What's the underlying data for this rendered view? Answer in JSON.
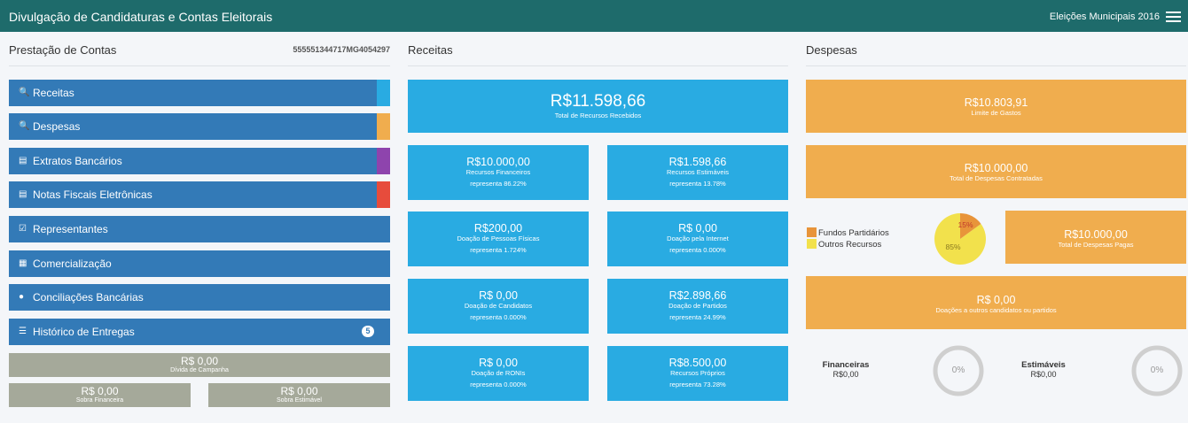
{
  "header": {
    "title": "Divulgação de Candidaturas e Contas Eleitorais",
    "election": "Eleições Municipais 2016"
  },
  "colors": {
    "header": "#1e6b6b",
    "menu": "#337ab7",
    "receitas_tile": "#29abe2",
    "despesas_tile": "#f0ad4e",
    "grey_box": "#a5a99a"
  },
  "prestacao": {
    "title": "Prestação de Contas",
    "id": "555551344717MG4054297",
    "menu": [
      {
        "icon": "search-icon",
        "label": "Receitas",
        "color": "#29abe2"
      },
      {
        "icon": "search-icon",
        "label": "Despesas",
        "color": "#f0ad4e"
      },
      {
        "icon": "document-icon",
        "label": "Extratos Bancários",
        "color": "#8e44ad"
      },
      {
        "icon": "document-icon",
        "label": "Notas Fiscais Eletrônicas",
        "color": "#e74c3c"
      },
      {
        "icon": "check-square-icon",
        "label": "Representantes",
        "color": ""
      },
      {
        "icon": "calendar-check-icon",
        "label": "Comercialização",
        "color": ""
      },
      {
        "icon": "comments-icon",
        "label": "Conciliações Bancárias",
        "color": ""
      },
      {
        "icon": "list-icon",
        "label": "Histórico de Entregas",
        "color": "",
        "badge": "5"
      }
    ],
    "divida": {
      "value": "R$ 0,00",
      "label": "Dívida de Campanha"
    },
    "sobra_financeira": {
      "value": "R$ 0,00",
      "label": "Sobra Financeira"
    },
    "sobra_estimavel": {
      "value": "R$ 0,00",
      "label": "Sobra Estimável"
    }
  },
  "receitas": {
    "title": "Receitas",
    "total": {
      "value": "R$11.598,66",
      "label": "Total de Recursos Recebidos"
    },
    "tiles": [
      {
        "value": "R$10.000,00",
        "label": "Recursos Financeiros",
        "rep": "representa 86.22%"
      },
      {
        "value": "R$1.598,66",
        "label": "Recursos Estimáveis",
        "rep": "representa 13.78%"
      },
      {
        "value": "R$200,00",
        "label": "Doação de Pessoas Físicas",
        "rep": "representa 1.724%"
      },
      {
        "value": "R$ 0,00",
        "label": "Doação pela Internet",
        "rep": "representa 0.000%"
      },
      {
        "value": "R$ 0,00",
        "label": "Doação de Candidatos",
        "rep": "representa 0.000%"
      },
      {
        "value": "R$2.898,66",
        "label": "Doação de Partidos",
        "rep": "representa 24.99%"
      },
      {
        "value": "R$ 0,00",
        "label": "Doação de RONIs",
        "rep": "representa 0.000%"
      },
      {
        "value": "R$8.500,00",
        "label": "Recursos Próprios",
        "rep": "representa 73.28%"
      }
    ]
  },
  "despesas": {
    "title": "Despesas",
    "limite": {
      "value": "R$10.803,91",
      "label": "Limite de Gastos"
    },
    "contratadas": {
      "value": "R$10.000,00",
      "label": "Total de Despesas Contratadas"
    },
    "pagas": {
      "value": "R$10.000,00",
      "label": "Total de Despesas Pagas"
    },
    "doacoes": {
      "value": "R$ 0,00",
      "label": "Doações a outros candidatos ou partidos"
    },
    "legend": [
      {
        "label": "Fundos Partidários",
        "color": "#e8943a"
      },
      {
        "label": "Outros Recursos",
        "color": "#f2e14c"
      }
    ],
    "pie": {
      "fundos_label": "15%",
      "outros_label": "85%",
      "fundos_pct": 15
    },
    "financeiras": {
      "title": "Financeiras",
      "value": "R$0,00",
      "pct": "0%"
    },
    "estimaveis": {
      "title": "Estimáveis",
      "value": "R$0,00",
      "pct": "0%"
    }
  }
}
